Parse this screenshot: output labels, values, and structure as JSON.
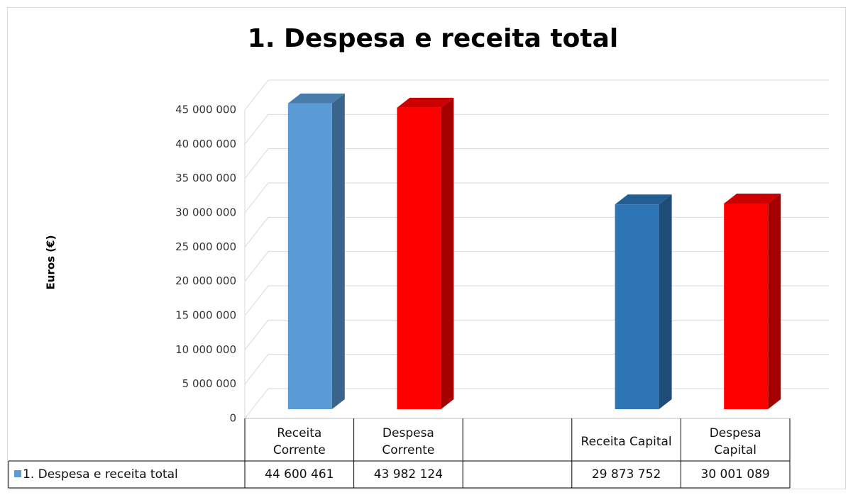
{
  "chart_data": {
    "type": "bar3d",
    "title": "1. Despesa e receita total",
    "y_label": "Euros (€)",
    "categories": [
      "Receita Corrente",
      "Despesa Corrente",
      null,
      "Receita Capital",
      "Despesa Capital"
    ],
    "series": [
      {
        "name": "1. Despesa e receita total",
        "color": "#5b9bd5",
        "colors": [
          "#5b9bd5",
          "#ff0000",
          null,
          "#2e75b6",
          "#ff0000"
        ],
        "values": [
          44600461,
          43982124,
          null,
          29873752,
          30001089
        ],
        "value_labels": [
          "44 600 461",
          "43 982 124",
          null,
          "29 873 752",
          "30 001 089"
        ]
      }
    ],
    "ylim": [
      0,
      45000000
    ],
    "yticks": [
      0,
      {
        "value": 5000000,
        "label": "5 000 000"
      },
      {
        "value": 10000000,
        "label": "10 000 000"
      },
      {
        "value": 15000000,
        "label": "15 000 000"
      },
      {
        "value": 20000000,
        "label": "20 000 000"
      },
      {
        "value": 25000000,
        "label": "25 000 000"
      },
      {
        "value": 30000000,
        "label": "30 000 000"
      },
      {
        "value": 35000000,
        "label": "35 000 000"
      },
      {
        "value": 40000000,
        "label": "40 000 000"
      },
      {
        "value": 45000000,
        "label": "45 000 000"
      }
    ],
    "grid": true,
    "data_table": true
  }
}
